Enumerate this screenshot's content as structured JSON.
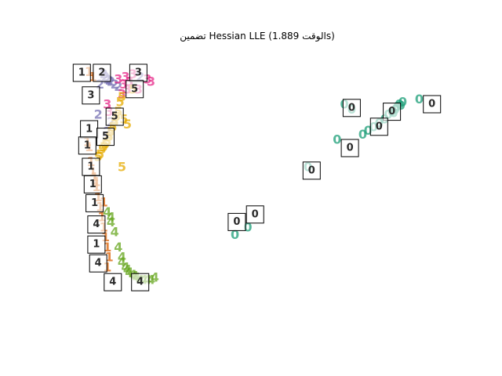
{
  "chart_data": {
    "type": "scatter",
    "title": "تضمين Hessian LLE (الوقت 1.889s)",
    "xlabel": "",
    "ylabel": "",
    "axes_visible": false,
    "grid": false,
    "xlim": [
      0,
      1
    ],
    "ylim": [
      0,
      1
    ],
    "digit_colors": {
      "0": "#1b9e77",
      "1": "#d95f02",
      "2": "#7570b3",
      "3": "#e7298a",
      "4": "#66a61e",
      "5": "#e6ab02"
    },
    "series": [
      {
        "digit": "0",
        "points": [
          [
            0.945,
            0.87
          ],
          [
            0.89,
            0.85
          ],
          [
            0.885,
            0.84
          ],
          [
            0.88,
            0.83
          ],
          [
            0.895,
            0.845
          ],
          [
            0.87,
            0.82
          ],
          [
            0.86,
            0.81
          ],
          [
            0.85,
            0.79
          ],
          [
            0.835,
            0.775
          ],
          [
            0.82,
            0.76
          ],
          [
            0.805,
            0.745
          ],
          [
            0.79,
            0.73
          ],
          [
            0.74,
            0.85
          ],
          [
            0.76,
            0.83
          ],
          [
            0.72,
            0.71
          ],
          [
            0.64,
            0.6
          ],
          [
            0.475,
            0.36
          ],
          [
            0.44,
            0.33
          ],
          [
            0.9,
            0.86
          ],
          [
            0.875,
            0.815
          ]
        ]
      },
      {
        "digit": "1",
        "points": [
          [
            0.04,
            0.98
          ],
          [
            0.05,
            0.96
          ],
          [
            0.035,
            0.7
          ],
          [
            0.04,
            0.68
          ],
          [
            0.045,
            0.62
          ],
          [
            0.05,
            0.58
          ],
          [
            0.055,
            0.56
          ],
          [
            0.06,
            0.52
          ],
          [
            0.065,
            0.48
          ],
          [
            0.07,
            0.44
          ],
          [
            0.075,
            0.4
          ],
          [
            0.08,
            0.36
          ],
          [
            0.085,
            0.32
          ],
          [
            0.09,
            0.28
          ],
          [
            0.095,
            0.24
          ],
          [
            0.09,
            0.2
          ],
          [
            0.08,
            0.46
          ],
          [
            0.06,
            0.54
          ]
        ]
      },
      {
        "digit": "2",
        "points": [
          [
            0.08,
            0.97
          ],
          [
            0.09,
            0.95
          ],
          [
            0.1,
            0.94
          ],
          [
            0.11,
            0.93
          ],
          [
            0.12,
            0.92
          ],
          [
            0.085,
            0.96
          ],
          [
            0.095,
            0.945
          ],
          [
            0.07,
            0.93
          ],
          [
            0.1,
            0.78
          ],
          [
            0.09,
            0.74
          ],
          [
            0.065,
            0.81
          ],
          [
            0.18,
            0.96
          ]
        ]
      },
      {
        "digit": "3",
        "points": [
          [
            0.14,
            0.96
          ],
          [
            0.15,
            0.94
          ],
          [
            0.135,
            0.93
          ],
          [
            0.145,
            0.91
          ],
          [
            0.13,
            0.89
          ],
          [
            0.09,
            0.85
          ],
          [
            0.095,
            0.82
          ],
          [
            0.2,
            0.95
          ],
          [
            0.21,
            0.94
          ],
          [
            0.175,
            0.91
          ],
          [
            0.16,
            0.97
          ],
          [
            0.12,
            0.95
          ]
        ]
      },
      {
        "digit": "4",
        "points": [
          [
            0.1,
            0.38
          ],
          [
            0.11,
            0.34
          ],
          [
            0.12,
            0.28
          ],
          [
            0.13,
            0.24
          ],
          [
            0.14,
            0.2
          ],
          [
            0.15,
            0.18
          ],
          [
            0.16,
            0.17
          ],
          [
            0.17,
            0.16
          ],
          [
            0.18,
            0.15
          ],
          [
            0.19,
            0.15
          ],
          [
            0.2,
            0.15
          ],
          [
            0.21,
            0.15
          ],
          [
            0.22,
            0.16
          ],
          [
            0.09,
            0.42
          ],
          [
            0.1,
            0.4
          ],
          [
            0.13,
            0.22
          ],
          [
            0.145,
            0.19
          ],
          [
            0.165,
            0.165
          ]
        ]
      },
      {
        "digit": "5",
        "points": [
          [
            0.13,
            0.88
          ],
          [
            0.125,
            0.86
          ],
          [
            0.12,
            0.82
          ],
          [
            0.115,
            0.8
          ],
          [
            0.11,
            0.78
          ],
          [
            0.105,
            0.76
          ],
          [
            0.1,
            0.74
          ],
          [
            0.095,
            0.72
          ],
          [
            0.09,
            0.7
          ],
          [
            0.085,
            0.69
          ],
          [
            0.08,
            0.68
          ],
          [
            0.075,
            0.67
          ],
          [
            0.07,
            0.65
          ],
          [
            0.065,
            0.64
          ],
          [
            0.13,
            0.6
          ],
          [
            0.16,
            0.91
          ],
          [
            0.145,
            0.77
          ],
          [
            0.135,
            0.79
          ]
        ]
      }
    ],
    "thumbnails": [
      {
        "digit": "1",
        "x": 0.02,
        "y": 0.975
      },
      {
        "digit": "2",
        "x": 0.075,
        "y": 0.975
      },
      {
        "digit": "3",
        "x": 0.175,
        "y": 0.975
      },
      {
        "digit": "3",
        "x": 0.045,
        "y": 0.885
      },
      {
        "digit": "5",
        "x": 0.165,
        "y": 0.91
      },
      {
        "digit": "5",
        "x": 0.11,
        "y": 0.8
      },
      {
        "digit": "1",
        "x": 0.04,
        "y": 0.75
      },
      {
        "digit": "5",
        "x": 0.085,
        "y": 0.72
      },
      {
        "digit": "1",
        "x": 0.035,
        "y": 0.685
      },
      {
        "digit": "1",
        "x": 0.045,
        "y": 0.6
      },
      {
        "digit": "1",
        "x": 0.05,
        "y": 0.53
      },
      {
        "digit": "1",
        "x": 0.055,
        "y": 0.455
      },
      {
        "digit": "4",
        "x": 0.06,
        "y": 0.37
      },
      {
        "digit": "1",
        "x": 0.06,
        "y": 0.29
      },
      {
        "digit": "4",
        "x": 0.065,
        "y": 0.215
      },
      {
        "digit": "4",
        "x": 0.105,
        "y": 0.14
      },
      {
        "digit": "4",
        "x": 0.18,
        "y": 0.14
      },
      {
        "digit": "0",
        "x": 0.76,
        "y": 0.835
      },
      {
        "digit": "0",
        "x": 0.87,
        "y": 0.82
      },
      {
        "digit": "0",
        "x": 0.98,
        "y": 0.85
      },
      {
        "digit": "0",
        "x": 0.835,
        "y": 0.76
      },
      {
        "digit": "0",
        "x": 0.755,
        "y": 0.675
      },
      {
        "digit": "0",
        "x": 0.65,
        "y": 0.585
      },
      {
        "digit": "0",
        "x": 0.495,
        "y": 0.41
      },
      {
        "digit": "0",
        "x": 0.445,
        "y": 0.38
      }
    ]
  }
}
